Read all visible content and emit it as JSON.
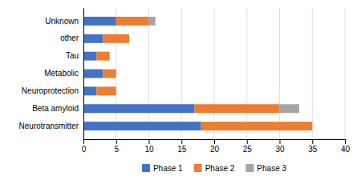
{
  "chart_data": {
    "type": "bar",
    "orientation": "horizontal",
    "stacked": true,
    "categories": [
      "Neurotransmitter",
      "Beta amyloid",
      "Neuroprotection",
      "Metabolic",
      "Tau",
      "other",
      "Unknown"
    ],
    "series": [
      {
        "name": "Phase 1",
        "color": "#4472C4",
        "values": [
          18,
          17,
          2,
          3,
          2,
          3,
          5
        ]
      },
      {
        "name": "Phase 2",
        "color": "#ED7D31",
        "values": [
          17,
          13,
          3,
          2,
          2,
          4,
          5
        ]
      },
      {
        "name": "Phase 3",
        "color": "#A5A5A5",
        "values": [
          0,
          3,
          0,
          0,
          0,
          0,
          1
        ]
      }
    ],
    "xlim": [
      0,
      40
    ],
    "xticks": [
      0,
      5,
      10,
      15,
      20,
      25,
      30,
      35,
      40
    ],
    "grid": true,
    "legend": "bottom"
  }
}
